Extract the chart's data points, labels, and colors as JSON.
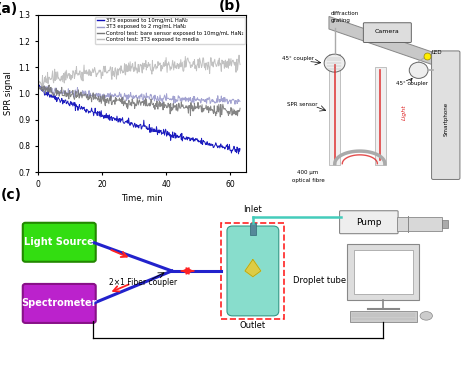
{
  "fig_width": 4.74,
  "fig_height": 3.74,
  "dpi": 100,
  "panel_a": {
    "label": "(a)",
    "xlabel": "Time, min",
    "ylabel": "SPR signal",
    "xlim": [
      0,
      65
    ],
    "ylim": [
      0.7,
      1.3
    ],
    "yticks": [
      0.7,
      0.8,
      0.9,
      1.0,
      1.1,
      1.2,
      1.3
    ],
    "xticks": [
      0,
      20,
      40,
      60
    ],
    "legend": [
      "3T3 exposed to 10mg/mL HaN₂",
      "3T3 exposed to 2 mg/mL HaN₂",
      "Control test: bare sensor exposed to 10mg/mL HaN₂",
      "Control test: 3T3 exposed to media"
    ],
    "line_colors": [
      "#1111bb",
      "#9999cc",
      "#777777",
      "#bbbbbb"
    ]
  },
  "panel_b": {
    "label": "(b)"
  },
  "panel_c": {
    "label": "(c)",
    "labels": {
      "light_source": "Light Source",
      "fiber_coupler": "2×1 Fiber coupler",
      "spectrometer": "Spectrometer",
      "inlet": "Inlet",
      "outlet": "Outlet",
      "pump": "Pump",
      "droplet_tube": "Droplet tube"
    },
    "colors": {
      "light_source_box": "#33dd11",
      "spectrometer_box": "#bb22cc",
      "dashed_rect": "#ff2222",
      "tube_fill": "#88ddcc",
      "droplet": "#ddcc44",
      "fiber_blue": "#2222cc",
      "arrow_red": "#ff2222"
    }
  }
}
